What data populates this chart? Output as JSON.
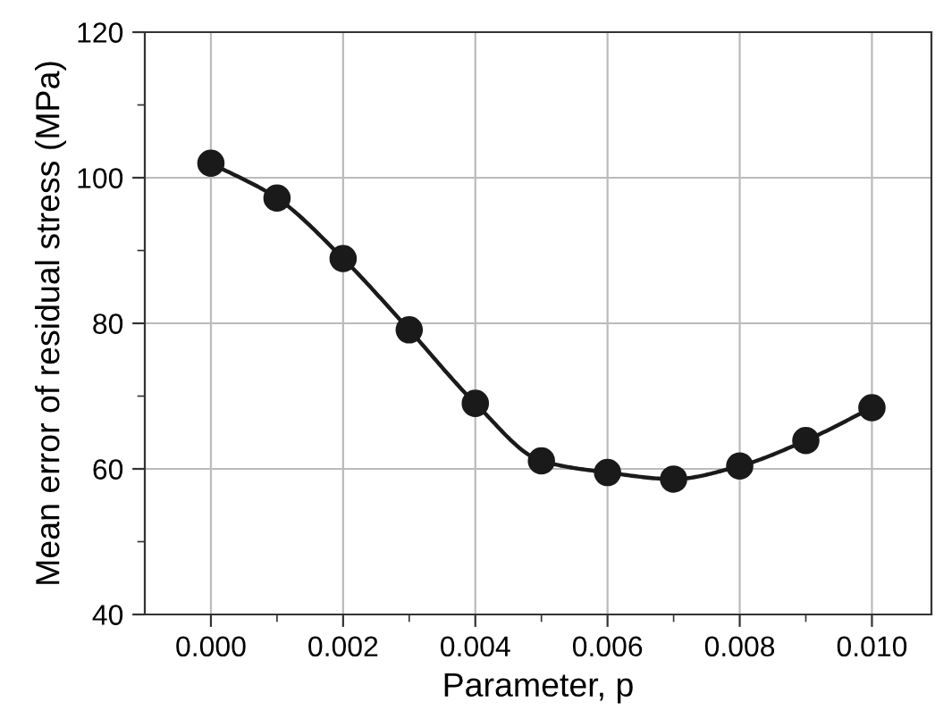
{
  "chart_data": {
    "type": "line",
    "xlabel": "Parameter, p",
    "ylabel": "Mean error of residual stress (MPa)",
    "x": [
      0.0,
      0.001,
      0.002,
      0.003,
      0.004,
      0.005,
      0.006,
      0.007,
      0.008,
      0.009,
      0.01
    ],
    "series": [
      {
        "color": "#1a1a1a",
        "values": [
          102.0,
          97.2,
          88.9,
          79.1,
          69.0,
          61.1,
          59.5,
          58.6,
          60.4,
          63.9,
          68.4
        ]
      }
    ],
    "marker": "circle",
    "line_style": "solid",
    "grid": true,
    "xlim": [
      -0.001,
      0.0109
    ],
    "ylim": [
      40,
      120
    ],
    "xticks": [
      {
        "value": 0.0,
        "label": "0.000"
      },
      {
        "value": 0.001,
        "label": null
      },
      {
        "value": 0.002,
        "label": "0.002"
      },
      {
        "value": 0.003,
        "label": null
      },
      {
        "value": 0.004,
        "label": "0.004"
      },
      {
        "value": 0.005,
        "label": null
      },
      {
        "value": 0.006,
        "label": "0.006"
      },
      {
        "value": 0.007,
        "label": null
      },
      {
        "value": 0.008,
        "label": "0.008"
      },
      {
        "value": 0.009,
        "label": null
      },
      {
        "value": 0.01,
        "label": "0.010"
      }
    ],
    "yticks": [
      40,
      {
        "value": 50,
        "label": null
      },
      60,
      {
        "value": 70,
        "label": null
      },
      80,
      {
        "value": 90,
        "label": null
      },
      100,
      {
        "value": 110,
        "label": null
      },
      120
    ]
  }
}
